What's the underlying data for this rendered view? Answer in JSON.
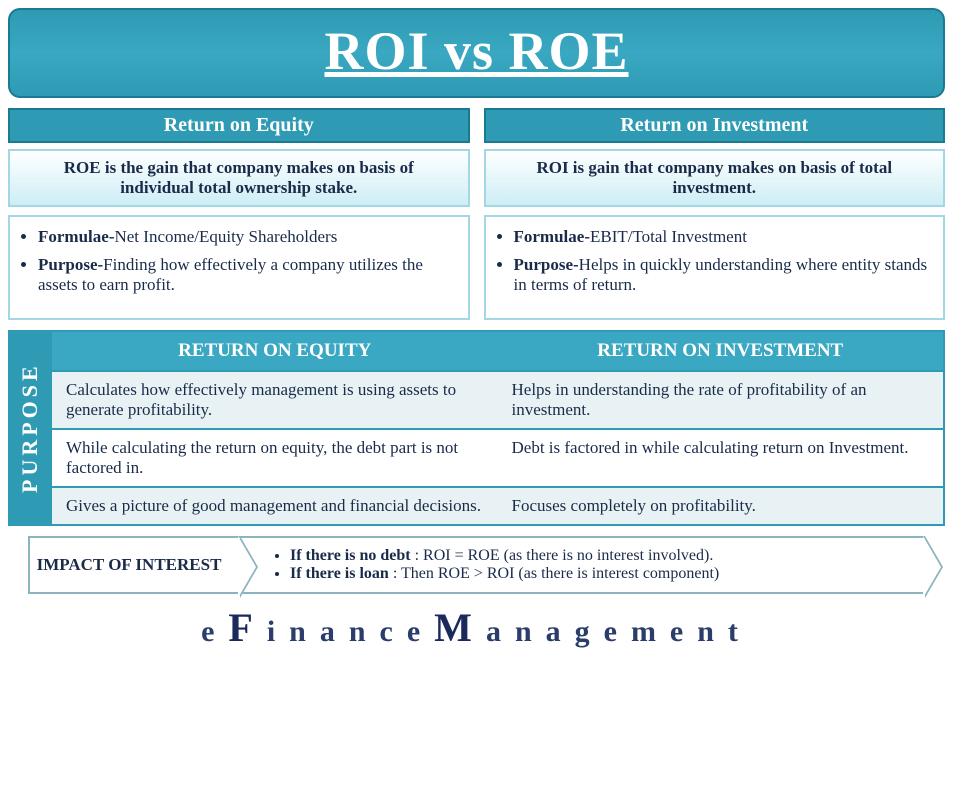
{
  "title": "ROI vs ROE",
  "columns": {
    "left": {
      "header": "Return on Equity",
      "definition": "ROE is the gain that company makes on basis of individual total ownership stake.",
      "bullets": [
        {
          "label": "Formulae-",
          "text": "Net Income/Equity Shareholders"
        },
        {
          "label": "Purpose-",
          "text": "Finding how effectively a company utilizes the assets to earn profit."
        }
      ]
    },
    "right": {
      "header": "Return on Investment",
      "definition": "ROI is gain that company makes on basis of total investment.",
      "bullets": [
        {
          "label": "Formulae-",
          "text": "EBIT/Total Investment"
        },
        {
          "label": "Purpose-",
          "text": "Helps in quickly understanding where entity stands in terms of return."
        }
      ]
    }
  },
  "purpose": {
    "tab": "PURPOSE",
    "head_left": "RETURN ON EQUITY",
    "head_right": "RETURN ON INVESTMENT",
    "rows": [
      {
        "l": "Calculates how effectively management is using assets to generate profitability.",
        "r": "Helps in understanding the rate of profitability of an investment."
      },
      {
        "l": "While calculating the return on equity, the debt part is not factored in.",
        "r": "Debt is factored in while calculating return on Investment."
      },
      {
        "l": "Gives a picture of good management and financial decisions.",
        "r": "Focuses completely on profitability."
      }
    ]
  },
  "impact": {
    "label": "IMPACT OF INTEREST",
    "items": [
      {
        "bold": "If there is no debt",
        "rest": " : ROI = ROE (as there is no interest involved)."
      },
      {
        "bold": "If there is loan",
        "rest": " : Then ROE > ROI (as there is interest component)"
      }
    ]
  },
  "brand": {
    "e": "e",
    "F": "F",
    "inance": "inance",
    "M": "M",
    "anagement": "anagement"
  },
  "colors": {
    "banner_bg": "#2e9ab3",
    "banner_border": "#1a7a92",
    "text": "#1a2b4a",
    "box_border": "#a2d7e3",
    "table_border": "#2e9ab3",
    "row_alt": "#e8f2f4",
    "impact_border": "#8ab4c0",
    "brand": "#2a3d6b"
  }
}
